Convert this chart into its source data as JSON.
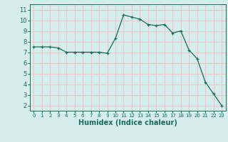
{
  "x": [
    0,
    1,
    2,
    3,
    4,
    5,
    6,
    7,
    8,
    9,
    10,
    11,
    12,
    13,
    14,
    15,
    16,
    17,
    18,
    19,
    20,
    21,
    22,
    23
  ],
  "y": [
    7.5,
    7.5,
    7.5,
    7.4,
    7.0,
    7.0,
    7.0,
    7.0,
    7.0,
    6.9,
    8.3,
    10.5,
    10.3,
    10.1,
    9.6,
    9.5,
    9.6,
    8.8,
    9.0,
    7.2,
    6.4,
    4.2,
    3.1,
    2.0
  ],
  "background_color": "#d6eded",
  "grid_color": "#e8c8c8",
  "line_color": "#1a6b5a",
  "marker_color": "#1a6b5a",
  "xlabel": "Humidex (Indice chaleur)",
  "xlim": [
    -0.5,
    23.5
  ],
  "ylim": [
    1.5,
    11.5
  ],
  "yticks": [
    2,
    3,
    4,
    5,
    6,
    7,
    8,
    9,
    10,
    11
  ],
  "xticks": [
    0,
    1,
    2,
    3,
    4,
    5,
    6,
    7,
    8,
    9,
    10,
    11,
    12,
    13,
    14,
    15,
    16,
    17,
    18,
    19,
    20,
    21,
    22,
    23
  ],
  "xlabel_fontsize": 7,
  "tick_fontsize_x": 5,
  "tick_fontsize_y": 6
}
